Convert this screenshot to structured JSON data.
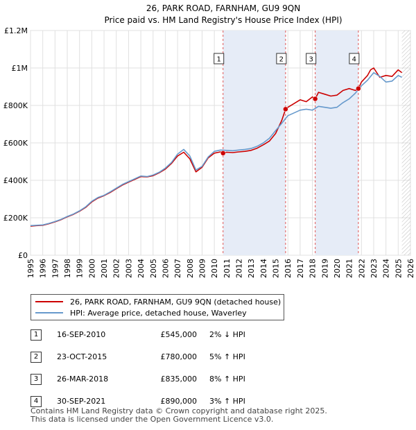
{
  "chart_data": {
    "type": "line",
    "title": "26, PARK ROAD, FARNHAM, GU9 9QN",
    "subtitle": "Price paid vs. HM Land Registry's House Price Index (HPI)",
    "xlabel": "",
    "ylabel": "",
    "xlim": [
      1995,
      2026
    ],
    "ylim": [
      0,
      1200000
    ],
    "x_ticks": [
      1995,
      1996,
      1997,
      1998,
      1999,
      2000,
      2001,
      2002,
      2003,
      2004,
      2005,
      2006,
      2007,
      2008,
      2009,
      2010,
      2011,
      2012,
      2013,
      2014,
      2015,
      2016,
      2017,
      2018,
      2019,
      2020,
      2021,
      2022,
      2023,
      2024,
      2025,
      2026
    ],
    "y_ticks": [
      {
        "value": 0,
        "label": "£0"
      },
      {
        "value": 200000,
        "label": "£200K"
      },
      {
        "value": 400000,
        "label": "£400K"
      },
      {
        "value": 600000,
        "label": "£600K"
      },
      {
        "value": 800000,
        "label": "£800K"
      },
      {
        "value": 1000000,
        "label": "£1M"
      },
      {
        "value": 1200000,
        "label": "£1.2M"
      }
    ],
    "series": [
      {
        "name": "26, PARK ROAD, FARNHAM, GU9 9QN (detached house)",
        "color": "#cc0000",
        "x": [
          1995,
          1995.5,
          1996,
          1996.5,
          1997,
          1997.5,
          1998,
          1998.5,
          1999,
          1999.5,
          2000,
          2000.5,
          2001,
          2001.5,
          2002,
          2002.5,
          2003,
          2003.5,
          2004,
          2004.5,
          2005,
          2005.5,
          2006,
          2006.5,
          2007,
          2007.5,
          2008,
          2008.5,
          2009,
          2009.5,
          2010,
          2010.5,
          2010.71,
          2011,
          2011.5,
          2012,
          2012.5,
          2013,
          2013.5,
          2014,
          2014.5,
          2015,
          2015.5,
          2015.81,
          2016,
          2016.5,
          2017,
          2017.5,
          2018,
          2018.23,
          2018.5,
          2019,
          2019.5,
          2020,
          2020.5,
          2021,
          2021.5,
          2021.75,
          2022,
          2022.5,
          2022.75,
          2023,
          2023.5,
          2024,
          2024.5,
          2025,
          2025.3
        ],
        "y": [
          155000,
          158000,
          160000,
          168000,
          178000,
          190000,
          205000,
          218000,
          235000,
          255000,
          285000,
          305000,
          318000,
          335000,
          355000,
          375000,
          390000,
          405000,
          420000,
          418000,
          425000,
          440000,
          460000,
          490000,
          530000,
          550000,
          515000,
          445000,
          470000,
          520000,
          545000,
          552000,
          545000,
          550000,
          548000,
          552000,
          555000,
          560000,
          572000,
          590000,
          610000,
          650000,
          720000,
          780000,
          790000,
          810000,
          830000,
          820000,
          845000,
          835000,
          870000,
          860000,
          850000,
          855000,
          880000,
          890000,
          880000,
          890000,
          925000,
          960000,
          990000,
          1000000,
          950000,
          960000,
          955000,
          990000,
          975000
        ]
      },
      {
        "name": "HPI: Average price, detached house, Waverley",
        "color": "#6699cc",
        "x": [
          1995,
          1995.5,
          1996,
          1996.5,
          1997,
          1997.5,
          1998,
          1998.5,
          1999,
          1999.5,
          2000,
          2000.5,
          2001,
          2001.5,
          2002,
          2002.5,
          2003,
          2003.5,
          2004,
          2004.5,
          2005,
          2005.5,
          2006,
          2006.5,
          2007,
          2007.5,
          2008,
          2008.5,
          2009,
          2009.5,
          2010,
          2010.5,
          2011,
          2011.5,
          2012,
          2012.5,
          2013,
          2013.5,
          2014,
          2014.5,
          2015,
          2015.5,
          2016,
          2016.5,
          2017,
          2017.5,
          2018,
          2018.5,
          2019,
          2019.5,
          2020,
          2020.5,
          2021,
          2021.5,
          2022,
          2022.5,
          2023,
          2023.5,
          2024,
          2024.5,
          2025,
          2025.3
        ],
        "y": [
          158000,
          160000,
          162000,
          170000,
          180000,
          192000,
          207000,
          220000,
          237000,
          258000,
          288000,
          308000,
          320000,
          338000,
          358000,
          378000,
          393000,
          408000,
          423000,
          420000,
          428000,
          443000,
          465000,
          495000,
          540000,
          565000,
          530000,
          455000,
          475000,
          525000,
          555000,
          562000,
          560000,
          558000,
          562000,
          565000,
          570000,
          582000,
          600000,
          625000,
          665000,
          705000,
          745000,
          760000,
          775000,
          780000,
          775000,
          795000,
          790000,
          785000,
          790000,
          815000,
          835000,
          865000,
          905000,
          935000,
          975000,
          955000,
          925000,
          930000,
          960000,
          950000
        ]
      }
    ],
    "annotations": [
      {
        "label": "1",
        "x": 2010.71,
        "y": 545000
      },
      {
        "label": "2",
        "x": 2015.81,
        "y": 780000
      },
      {
        "label": "3",
        "x": 2018.23,
        "y": 835000
      },
      {
        "label": "4",
        "x": 2021.75,
        "y": 890000
      }
    ],
    "shaded_ranges": [
      [
        2010.71,
        2015.81
      ],
      [
        2018.23,
        2021.75
      ]
    ],
    "hatched_from": 2025.3,
    "grid": true
  },
  "legend": {
    "items": [
      {
        "label": "26, PARK ROAD, FARNHAM, GU9 9QN (detached house)",
        "color": "#cc0000"
      },
      {
        "label": "HPI: Average price, detached house, Waverley",
        "color": "#6699cc"
      }
    ]
  },
  "transactions": [
    {
      "num": "1",
      "date": "16-SEP-2010",
      "price": "£545,000",
      "hpi": "2% ↓ HPI"
    },
    {
      "num": "2",
      "date": "23-OCT-2015",
      "price": "£780,000",
      "hpi": "5% ↑ HPI"
    },
    {
      "num": "3",
      "date": "26-MAR-2018",
      "price": "£835,000",
      "hpi": "8% ↑ HPI"
    },
    {
      "num": "4",
      "date": "30-SEP-2021",
      "price": "£890,000",
      "hpi": "3% ↑ HPI"
    }
  ],
  "footer": {
    "line1": "Contains HM Land Registry data © Crown copyright and database right 2025.",
    "line2": "This data is licensed under the Open Government Licence v3.0."
  }
}
